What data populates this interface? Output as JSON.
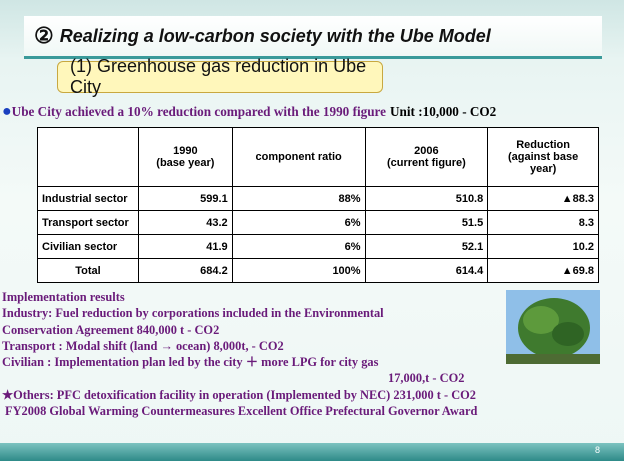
{
  "header": {
    "number": "②",
    "title": "Realizing a low-carbon society with the Ube Model"
  },
  "subtitle": "(1) Greenhouse gas reduction in Ube City",
  "summary": {
    "bullet": "●",
    "text": "Ube City achieved a 10% reduction compared with the 1990 figure",
    "unit": "Unit :10,000 - CO2"
  },
  "table": {
    "columns": [
      [
        "1990",
        "(base year)"
      ],
      [
        "component ratio"
      ],
      [
        "2006",
        "(current figure)"
      ],
      [
        "Reduction",
        "(against base",
        "year)"
      ]
    ],
    "rows": [
      {
        "label": "Industrial sector",
        "cells": [
          "599.1",
          "88%",
          "510.8",
          "▲88.3"
        ]
      },
      {
        "label": "Transport sector",
        "cells": [
          "43.2",
          "6%",
          "51.5",
          "8.3"
        ]
      },
      {
        "label": "Civilian sector",
        "cells": [
          "41.9",
          "6%",
          "52.1",
          "10.2"
        ]
      },
      {
        "label": "Total",
        "cells": [
          "684.2",
          "100%",
          "614.4",
          "▲69.8"
        ]
      }
    ]
  },
  "results": {
    "heading": "Implementation results",
    "lines": [
      "Industry: Fuel reduction by corporations included in the Environmental",
      "Conservation Agreement    840,000 t - CO2",
      "Transport : Modal shift (land → ocean)  8,000t, - CO2",
      "Civilian : Implementation plan led by the city ＋  more LPG for city gas",
      "17,000,t - CO2"
    ],
    "others": "★Others: PFC detoxification facility in operation (Implemented by NEC) 231,000 t - CO2",
    "award": "FY2008 Global Warming Countermeasures Excellent Office Prefectural Governor Award"
  },
  "page_number": "8"
}
